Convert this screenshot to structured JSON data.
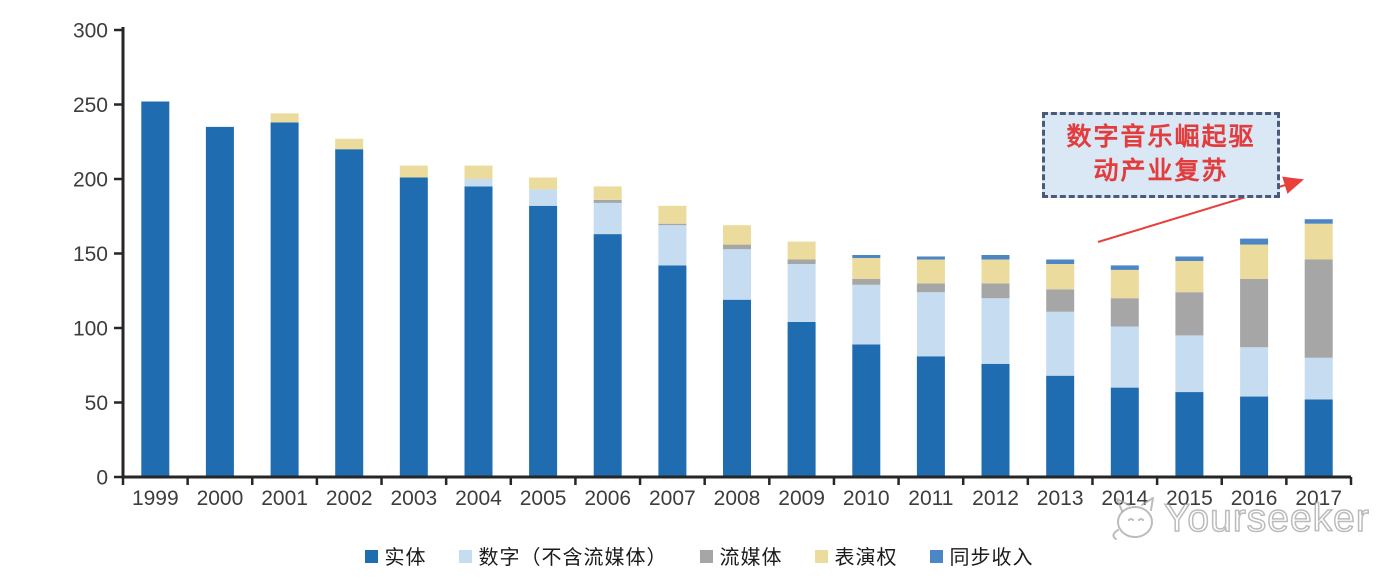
{
  "chart_data": {
    "type": "bar",
    "stacked": true,
    "title": "",
    "xlabel": "",
    "ylabel": "",
    "categories": [
      "1999",
      "2000",
      "2001",
      "2002",
      "2003",
      "2004",
      "2005",
      "2006",
      "2007",
      "2008",
      "2009",
      "2010",
      "2011",
      "2012",
      "2013",
      "2014",
      "2015",
      "2016",
      "2017"
    ],
    "series": [
      {
        "name": "实体",
        "color": "#1F6CB0",
        "values": [
          252,
          235,
          238,
          220,
          201,
          195,
          182,
          163,
          142,
          119,
          104,
          89,
          81,
          76,
          68,
          60,
          57,
          54,
          52
        ]
      },
      {
        "name": "数字（不含流媒体）",
        "color": "#C6DCF0",
        "values": [
          0,
          0,
          0,
          0,
          0,
          5,
          11,
          21,
          27,
          34,
          39,
          40,
          43,
          44,
          43,
          41,
          38,
          33,
          28
        ]
      },
      {
        "name": "流媒体",
        "color": "#A6A6A6",
        "values": [
          0,
          0,
          0,
          0,
          0,
          0,
          0,
          2,
          1,
          3,
          3,
          4,
          6,
          10,
          15,
          19,
          29,
          46,
          66
        ]
      },
      {
        "name": "表演权",
        "color": "#EBDB9C",
        "values": [
          0,
          0,
          6,
          7,
          8,
          9,
          8,
          9,
          12,
          13,
          12,
          14,
          16,
          16,
          17,
          19,
          21,
          23,
          24
        ]
      },
      {
        "name": "同步收入",
        "color": "#4D86C4",
        "values": [
          0,
          0,
          0,
          0,
          0,
          0,
          0,
          0,
          0,
          0,
          0,
          2,
          2,
          3,
          3,
          3,
          3,
          4,
          3
        ]
      }
    ],
    "ylim": [
      0,
      300
    ],
    "yticks": [
      0,
      50,
      100,
      150,
      200,
      250,
      300
    ],
    "grid": false,
    "legend_position": "bottom"
  },
  "annotation": {
    "line1": "数字音乐崛起驱",
    "line2": "动产业复苏",
    "text_color": "#E23C3C",
    "box_fill": "#DAE7F5",
    "box_border": "#4A5A78",
    "arrow_color": "#E8403C"
  },
  "watermark": {
    "text": "Yourseeker",
    "logo": "cat-face-logo"
  }
}
